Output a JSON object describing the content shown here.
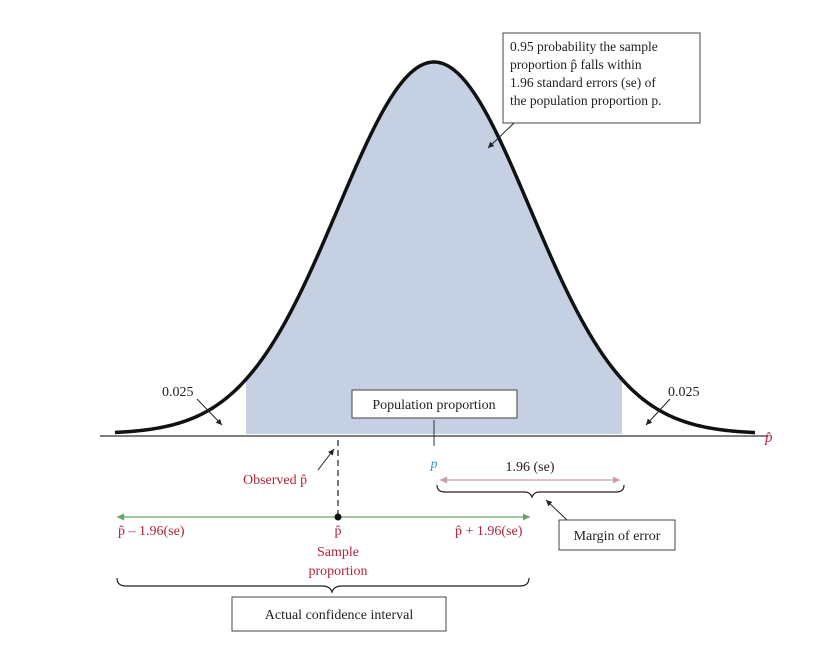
{
  "colors": {
    "fill": "#c5d0e3",
    "curve": "#111111",
    "accent_red": "#b0243d",
    "accent_blue": "#3b8fd6",
    "interval_line": "#6aa26a",
    "margin_line": "#c9a1a1"
  },
  "annotation": {
    "lines": [
      "0.95 probability the sample",
      "proportion p̂ falls within",
      "1.96 standard errors (se) of",
      "the population proportion p."
    ]
  },
  "tails": {
    "left": "0.025",
    "right": "0.025"
  },
  "axis": {
    "label": "p̂"
  },
  "population": {
    "box_label": "Population proportion",
    "symbol": "p"
  },
  "observed": {
    "label": "Observed p̂"
  },
  "margin": {
    "label": "1.96 (se)",
    "box_label": "Margin of error"
  },
  "interval": {
    "lower": "p̂ – 1.96(se)",
    "center": "p̂",
    "upper": "p̂ + 1.96(se)",
    "center_caption_1": "Sample",
    "center_caption_2": "proportion",
    "box_label": "Actual confidence interval"
  }
}
